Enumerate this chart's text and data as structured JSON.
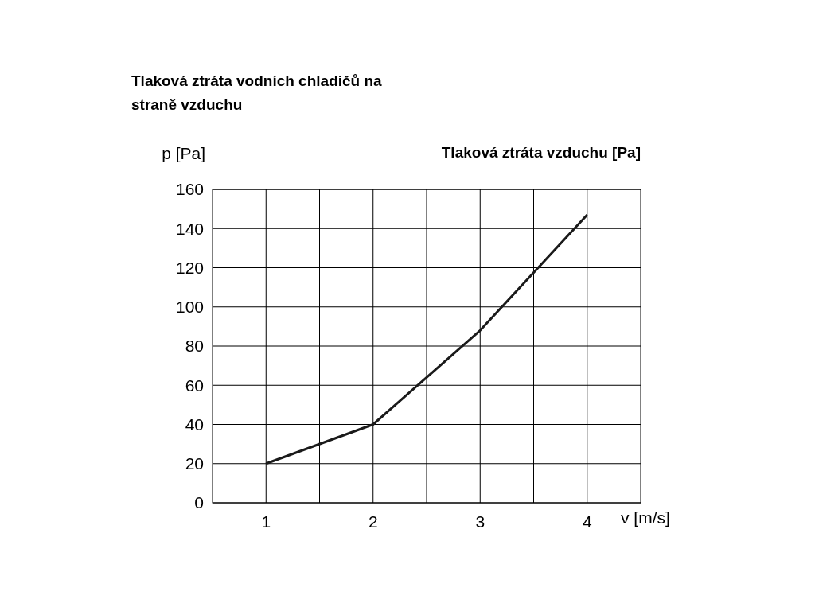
{
  "chart_data": {
    "type": "line",
    "title": "Tlaková ztráta vodních chladičů na straně vzduchu",
    "subtitle": "Tlaková ztráta vzduchu [Pa]",
    "xlabel": "v [m/s]",
    "ylabel": "p [Pa]",
    "x": [
      1,
      2,
      3,
      4
    ],
    "series": [
      {
        "color": "#1a1a1a",
        "values": [
          20,
          40,
          88,
          147
        ]
      }
    ],
    "xlim": [
      0.5,
      4.5
    ],
    "xticks": [
      1,
      {
        "value": 1.5,
        "label": null
      },
      2,
      {
        "value": 2.5,
        "label": null
      },
      3,
      {
        "value": 3.5,
        "label": null
      },
      4
    ],
    "ylim": [
      0,
      160
    ],
    "yticks": [
      0,
      20,
      40,
      60,
      80,
      100,
      120,
      140,
      160
    ],
    "grid": true,
    "marker": "none",
    "line_style": "solid"
  }
}
